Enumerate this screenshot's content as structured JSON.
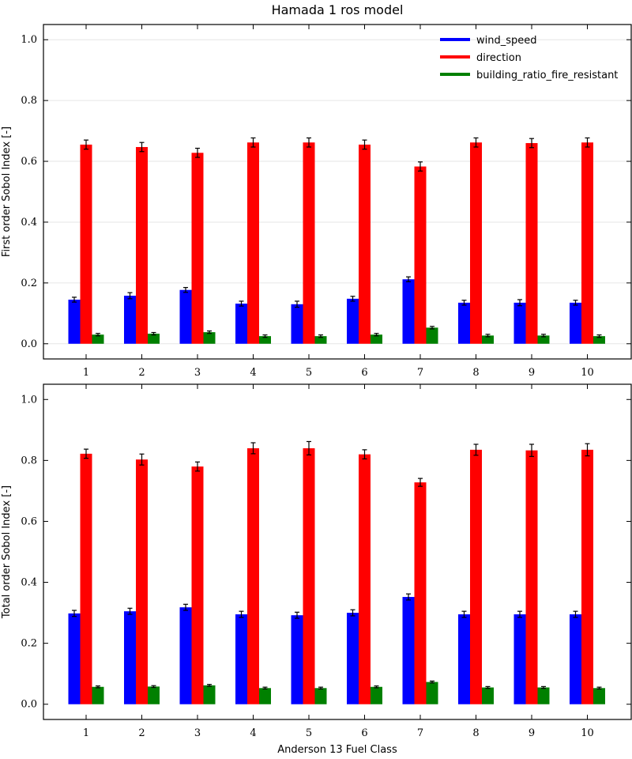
{
  "title": "Hamada 1 ros model",
  "colors": {
    "wind_speed": "#0000ff",
    "direction": "#ff0000",
    "building_ratio_fire_resistant": "#008000"
  },
  "chart_data": [
    {
      "type": "bar",
      "title": "Hamada 1 ros model",
      "xlabel": "",
      "ylabel": "First order Sobol Index [-]",
      "ylim": [
        -0.05,
        1.05
      ],
      "yticks": [
        "0.0",
        "0.2",
        "0.4",
        "0.6",
        "0.8",
        "1.0"
      ],
      "categories": [
        "1",
        "2",
        "3",
        "4",
        "5",
        "6",
        "7",
        "8",
        "9",
        "10"
      ],
      "grid": true,
      "legend": "top-right",
      "series": [
        {
          "name": "wind_speed",
          "values": [
            0.145,
            0.158,
            0.177,
            0.132,
            0.13,
            0.148,
            0.212,
            0.135,
            0.135,
            0.135
          ],
          "errors": [
            0.008,
            0.01,
            0.008,
            0.008,
            0.01,
            0.008,
            0.008,
            0.008,
            0.01,
            0.008
          ]
        },
        {
          "name": "direction",
          "values": [
            0.655,
            0.647,
            0.628,
            0.662,
            0.662,
            0.655,
            0.583,
            0.662,
            0.66,
            0.662
          ],
          "errors": [
            0.015,
            0.015,
            0.015,
            0.015,
            0.015,
            0.015,
            0.015,
            0.015,
            0.015,
            0.015
          ]
        },
        {
          "name": "building_ratio_fire_resistant",
          "values": [
            0.03,
            0.033,
            0.038,
            0.025,
            0.025,
            0.03,
            0.053,
            0.027,
            0.027,
            0.025
          ],
          "errors": [
            0.004,
            0.004,
            0.004,
            0.004,
            0.004,
            0.004,
            0.004,
            0.004,
            0.004,
            0.004
          ]
        }
      ]
    },
    {
      "type": "bar",
      "title": "",
      "xlabel": "Anderson 13 Fuel Class",
      "ylabel": "Total order Sobol Index [-]",
      "ylim": [
        -0.05,
        1.05
      ],
      "yticks": [
        "0.0",
        "0.2",
        "0.4",
        "0.6",
        "0.8",
        "1.0"
      ],
      "categories": [
        "1",
        "2",
        "3",
        "4",
        "5",
        "6",
        "7",
        "8",
        "9",
        "10"
      ],
      "grid": false,
      "legend": "none",
      "series": [
        {
          "name": "wind_speed",
          "values": [
            0.298,
            0.305,
            0.318,
            0.295,
            0.292,
            0.3,
            0.352,
            0.295,
            0.295,
            0.295
          ],
          "errors": [
            0.01,
            0.01,
            0.01,
            0.01,
            0.01,
            0.01,
            0.01,
            0.01,
            0.01,
            0.01
          ]
        },
        {
          "name": "direction",
          "values": [
            0.822,
            0.803,
            0.78,
            0.84,
            0.84,
            0.82,
            0.728,
            0.835,
            0.833,
            0.835
          ],
          "errors": [
            0.015,
            0.018,
            0.015,
            0.018,
            0.022,
            0.015,
            0.013,
            0.018,
            0.02,
            0.02
          ]
        },
        {
          "name": "building_ratio_fire_resistant",
          "values": [
            0.057,
            0.058,
            0.062,
            0.053,
            0.053,
            0.057,
            0.073,
            0.055,
            0.055,
            0.053
          ],
          "errors": [
            0.003,
            0.003,
            0.003,
            0.003,
            0.003,
            0.003,
            0.003,
            0.003,
            0.003,
            0.003
          ]
        }
      ]
    }
  ]
}
